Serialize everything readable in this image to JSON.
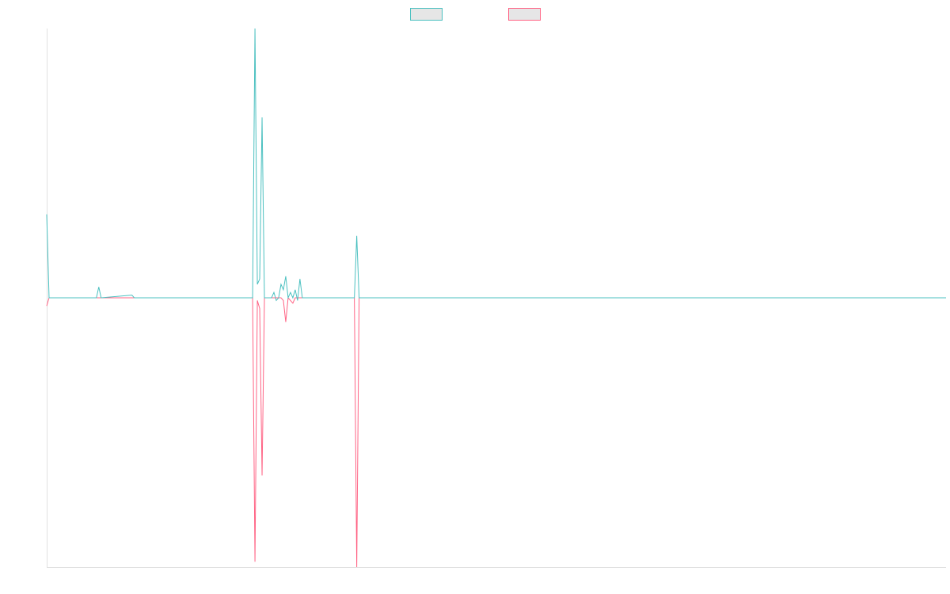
{
  "chart_data": {
    "type": "line",
    "xlim": [
      0,
      380
    ],
    "ylim": [
      -100,
      100
    ],
    "series": [
      {
        "color": "#4bc0c0",
        "x": [
          0,
          1,
          21,
          22,
          23,
          36,
          37,
          87,
          88,
          89,
          90,
          91,
          92,
          95,
          96,
          97,
          98,
          99,
          100,
          101,
          102,
          103,
          104,
          105,
          106,
          107,
          108,
          130,
          131,
          132,
          380
        ],
        "values": [
          31,
          0,
          0,
          4,
          0,
          1,
          0,
          0,
          100,
          5,
          7,
          67,
          0,
          0,
          2,
          -1,
          0,
          5,
          3,
          8,
          0,
          2,
          0,
          3,
          -1,
          7,
          0,
          0,
          23,
          0,
          0
        ]
      },
      {
        "color": "#ff6384",
        "x": [
          0,
          1,
          87,
          88,
          89,
          90,
          91,
          92,
          99,
          100,
          101,
          102,
          103,
          104,
          105,
          130,
          131,
          132,
          380
        ],
        "values": [
          -3,
          0,
          0,
          -98,
          -1,
          -4,
          -66,
          0,
          0,
          -1,
          -9,
          0,
          -1,
          -2,
          0,
          0,
          -100,
          0,
          0
        ]
      }
    ]
  }
}
